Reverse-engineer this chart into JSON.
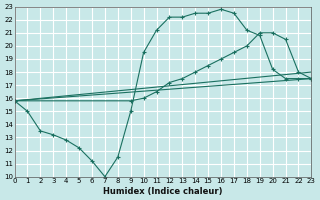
{
  "xlabel": "Humidex (Indice chaleur)",
  "ylabel": "",
  "bg_color": "#c8e8e8",
  "grid_color": "#ffffff",
  "line_color": "#1a7060",
  "xmin": 0,
  "xmax": 23,
  "ymin": 10,
  "ymax": 23,
  "series1_x": [
    0,
    1,
    2,
    3,
    4,
    5,
    6,
    7,
    8,
    9,
    10,
    11,
    12,
    13,
    14,
    15,
    16,
    17,
    18,
    19,
    20,
    21,
    22,
    23
  ],
  "series1_y": [
    15.8,
    15.0,
    13.5,
    13.2,
    12.8,
    12.2,
    11.2,
    10.0,
    11.5,
    15.0,
    19.5,
    21.2,
    22.2,
    22.2,
    22.5,
    22.5,
    22.8,
    22.5,
    21.2,
    20.8,
    18.2,
    17.5,
    17.5,
    17.5
  ],
  "series2_x": [
    0,
    9,
    10,
    11,
    12,
    13,
    14,
    15,
    16,
    17,
    18,
    19,
    20,
    21,
    22,
    23
  ],
  "series2_y": [
    15.8,
    15.8,
    16.0,
    16.5,
    17.2,
    17.5,
    18.0,
    18.5,
    19.0,
    19.5,
    20.0,
    21.0,
    21.0,
    20.5,
    18.0,
    17.5
  ],
  "series3_x": [
    0,
    23
  ],
  "series3_y": [
    15.8,
    18.0
  ],
  "series4_x": [
    0,
    23
  ],
  "series4_y": [
    15.8,
    17.5
  ]
}
